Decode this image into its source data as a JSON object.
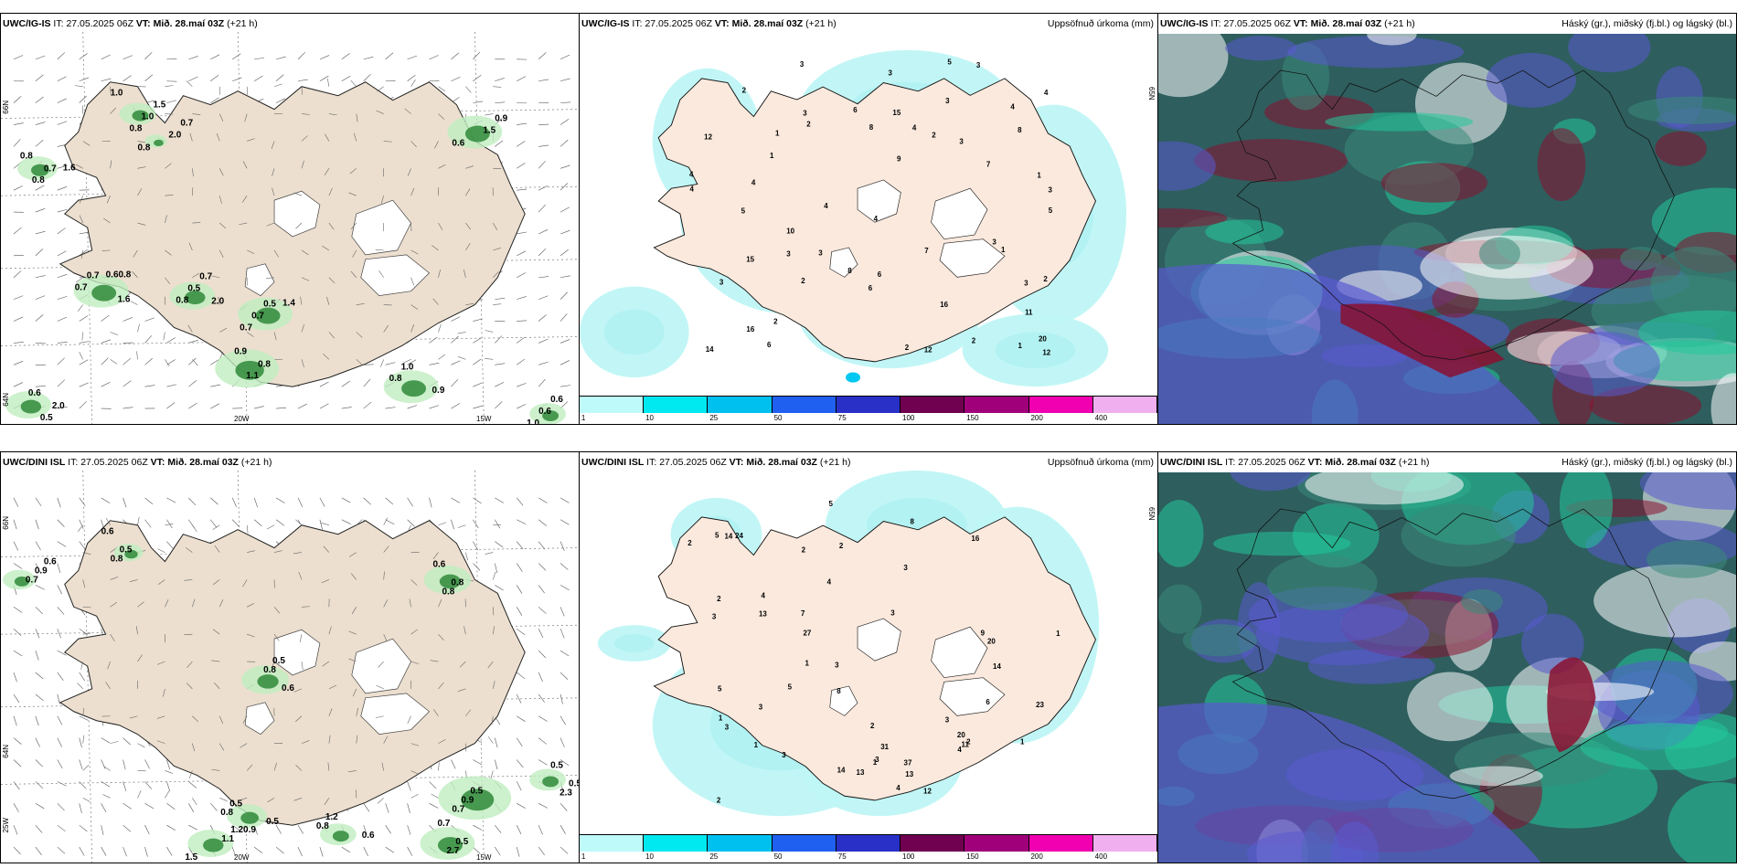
{
  "rows": [
    {
      "wind": {
        "model": "UWC/IG-IS",
        "it_label": "IT:",
        "it": "27.05.2025 06Z",
        "vt_label": "VT:",
        "vt": "Mið. 28.maí 03Z",
        "lead": "(+21 h)",
        "lat_labels": [
          "66N",
          "64N"
        ],
        "lon_labels": [
          "20W",
          "15W"
        ],
        "values": [
          "1.0",
          "0.7",
          "0.7",
          "2.0",
          "0.5",
          "0.6",
          "0.8",
          "1.0",
          "2.0",
          "0.6",
          "0.8",
          "1.5",
          "0.8",
          "0.7",
          "0.7",
          "0.7",
          "0.9",
          "1.1",
          "0.8",
          "0.5",
          "0.6",
          "0.7",
          "1.0",
          "0.8",
          "1.6",
          "0.5",
          "0.7",
          "1.5",
          "0.9",
          "0.9",
          "0.6",
          "1.0",
          "2.0",
          "0.8",
          "1.6",
          "0.60.8",
          "0.8",
          "1.4"
        ]
      },
      "precip": {
        "model": "UWC/IG-IS",
        "it_label": "IT:",
        "it": "27.05.2025 06Z",
        "vt_label": "VT:",
        "vt": "Mið. 28.maí 03Z",
        "lead": "(+21 h)",
        "title": "Uppsöfnuð úrkoma (mm)",
        "lat_label": "65N",
        "values": [
          "2",
          "1",
          "2",
          "3",
          "4",
          "2",
          "3",
          "5",
          "3",
          "4",
          "1",
          "1",
          "7",
          "2",
          "3",
          "4",
          "10",
          "4",
          "3",
          "6",
          "20",
          "15",
          "16",
          "15",
          "9",
          "3",
          "14",
          "16",
          "2",
          "4",
          "6",
          "12",
          "5",
          "3",
          "4",
          "4",
          "5",
          "7",
          "8",
          "3",
          "12",
          "12",
          "8",
          "6",
          "11",
          "2",
          "4",
          "3",
          "3",
          "2",
          "1",
          "1",
          "2",
          "3",
          "3",
          "6",
          "8"
        ]
      },
      "clouds": {
        "model": "UWC/IG-IS",
        "it_label": "IT:",
        "it": "27.05.2025 06Z",
        "vt_label": "VT:",
        "vt": "Mið. 28.maí 03Z",
        "lead": "(+21 h)",
        "title": "Háský (gr.), miðský (fj.bl.) og lágský (bl.)"
      }
    },
    {
      "wind": {
        "model": "UWC/DINI ISL",
        "it_label": "IT:",
        "it": "27.05.2025 06Z",
        "vt_label": "VT:",
        "vt": "Mið. 28.maí 03Z",
        "lead": "(+21 h)",
        "lat_labels": [
          "66N",
          "64N",
          "25W"
        ],
        "lon_labels": [
          "20W",
          "15W"
        ],
        "values": [
          "0.6",
          "0.7",
          "0.6",
          "0.5",
          "0.8",
          "0.7",
          "1.1",
          "0.7",
          "0.6",
          "0.5",
          "0.8",
          "0.9",
          "0.8",
          "0.8",
          "0.5",
          "0.9",
          "1.20.9",
          "2.7",
          "0.8",
          "2.3",
          "0.5",
          "0.6",
          "0.8",
          "0.5",
          "0.6",
          "0.5",
          "1.5",
          "0.5",
          "1.2",
          "0.5"
        ]
      },
      "precip": {
        "model": "UWC/DINI ISL",
        "it_label": "IT:",
        "it": "27.05.2025 06Z",
        "vt_label": "VT:",
        "vt": "Mið. 28.maí 03Z",
        "lead": "(+21 h)",
        "title": "Uppsöfnuð úrkoma (mm)",
        "lat_label": "65N",
        "values": [
          "14",
          "31",
          "3",
          "2",
          "1",
          "3",
          "3",
          "5",
          "9",
          "4",
          "3",
          "1",
          "13",
          "12",
          "16",
          "13",
          "20",
          "11",
          "23",
          "20",
          "24",
          "14",
          "13",
          "27",
          "37",
          "3",
          "8",
          "4",
          "2",
          "7",
          "5",
          "3",
          "6",
          "2",
          "4",
          "4",
          "14",
          "2",
          "3",
          "5",
          "2",
          "1",
          "1",
          "1",
          "3",
          "3",
          "2",
          "8",
          "5",
          "2",
          "1"
        ]
      },
      "clouds": {
        "model": "UWC/DINI ISL",
        "it_label": "IT:",
        "it": "27.05.2025 06Z",
        "vt_label": "VT:",
        "vt": "Mið. 28.maí 03Z",
        "lead": "(+21 h)",
        "title": "Háský (gr.), miðský (fj.bl.) og lágský (bl.)"
      }
    }
  ],
  "colorbar": {
    "ticks": [
      "1",
      "10",
      "25",
      "50",
      "75",
      "100",
      "150",
      "200",
      "400"
    ],
    "colors": [
      "#bffafa",
      "#00e8f0",
      "#00c0f0",
      "#2060f0",
      "#2830c8",
      "#700050",
      "#a0007a",
      "#f000b0",
      "#f0b0f0"
    ]
  }
}
